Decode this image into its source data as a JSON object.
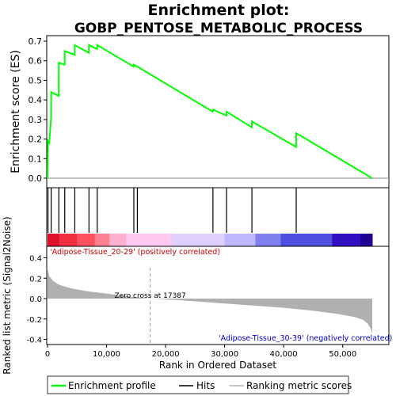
{
  "chart_data": {
    "type": "line",
    "title_line1": "Enrichment plot:",
    "title_line2": "GOBP_PENTOSE_METABOLIC_PROCESS",
    "top_panel": {
      "ylabel": "Enrichment score (ES)",
      "ylim": [
        0,
        0.7
      ],
      "yticks": [
        "0.0",
        "0.1",
        "0.2",
        "0.3",
        "0.4",
        "0.5",
        "0.6",
        "0.7"
      ],
      "series": {
        "name": "Enrichment profile",
        "color": "#00ff00",
        "x": [
          0,
          80,
          300,
          600,
          620,
          1900,
          1920,
          2900,
          2920,
          4600,
          4620,
          7000,
          7020,
          8400,
          8420,
          14600,
          14620,
          15200,
          15220,
          28000,
          28020,
          30300,
          30320,
          34600,
          34620,
          42100,
          42120,
          55000
        ],
        "y": [
          0.0,
          0.19,
          0.18,
          0.31,
          0.44,
          0.42,
          0.59,
          0.58,
          0.65,
          0.63,
          0.68,
          0.64,
          0.68,
          0.66,
          0.68,
          0.57,
          0.58,
          0.57,
          0.57,
          0.34,
          0.35,
          0.32,
          0.34,
          0.26,
          0.29,
          0.16,
          0.23,
          0.0
        ]
      }
    },
    "hits": [
      80,
      620,
      1920,
      2920,
      4620,
      7020,
      8420,
      14620,
      15220,
      28020,
      30320,
      34620,
      42120
    ],
    "heat_colors": [
      "#e0102a",
      "#f03040",
      "#ff5060",
      "#ff8090",
      "#ffb0d0",
      "#ffc8f0",
      "#e0d0ff",
      "#c0b8ff",
      "#8080f0",
      "#5050e0",
      "#3010c0",
      "#200090"
    ],
    "heat_breaks": [
      0,
      2000,
      5000,
      8000,
      10500,
      13300,
      21000,
      30000,
      35200,
      39500,
      48200,
      53000,
      55000
    ],
    "bottom_panel": {
      "ylabel": "Ranked list metric (Signal2Noise)",
      "ylim": [
        -0.45,
        0.45
      ],
      "yticks": [
        "0.4",
        "0.2",
        "0.0",
        "-0.2",
        "-0.4"
      ],
      "xlabel": "Rank in Ordered Dataset",
      "xticks": [
        "0",
        "10,000",
        "20,000",
        "30,000",
        "40,000",
        "50,000"
      ],
      "xmax": 55000,
      "zero_cross_label": "Zero cross at 17387",
      "zero_cross": 17387,
      "positive_label": "'Adipose-Tissue_20-29' (positively correlated)",
      "negative_label": "'Adipose-Tissue_30-39' (negatively correlated)",
      "metric_x": [
        0,
        300,
        1000,
        2000,
        4000,
        7000,
        10000,
        14000,
        17387,
        22000,
        28000,
        34000,
        40000,
        45000,
        49000,
        52000,
        53500,
        54300,
        54800,
        55000
      ],
      "metric_y": [
        0.29,
        0.22,
        0.17,
        0.135,
        0.1,
        0.07,
        0.05,
        0.02,
        0.0,
        -0.015,
        -0.04,
        -0.065,
        -0.09,
        -0.12,
        -0.15,
        -0.18,
        -0.21,
        -0.25,
        -0.3,
        -0.35
      ]
    },
    "legend": {
      "profile": "Enrichment profile",
      "hits": "Hits",
      "metric": "Ranking metric scores"
    }
  }
}
